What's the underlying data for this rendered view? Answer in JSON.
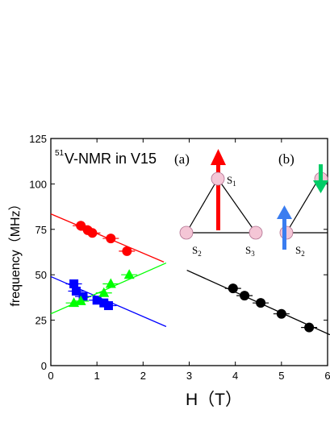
{
  "chart_data": {
    "type": "scatter",
    "title_prefix": "51",
    "title": "V-NMR in V15",
    "panel_a": "(a)",
    "panel_b": "(b)",
    "xlabel": "H（T）",
    "ylabel": "frequency（MHz）",
    "xlim": [
      0,
      6
    ],
    "ylim": [
      0,
      125
    ],
    "xticks": [
      0,
      1,
      2,
      3,
      4,
      5,
      6
    ],
    "yticks": [
      0,
      25,
      50,
      75,
      100,
      125
    ],
    "series": [
      {
        "color": "#ff0000",
        "marker": "circle",
        "points": [
          [
            0.65,
            77
          ],
          [
            0.8,
            74.5
          ],
          [
            0.9,
            73
          ],
          [
            1.3,
            70
          ],
          [
            1.65,
            63
          ]
        ],
        "fit": [
          [
            0,
            83.5
          ],
          [
            2.45,
            57
          ]
        ]
      },
      {
        "color": "#0000ff",
        "marker": "square",
        "points": [
          [
            0.5,
            45
          ],
          [
            0.55,
            41
          ],
          [
            0.7,
            38
          ],
          [
            1.0,
            36
          ],
          [
            1.15,
            34.5
          ],
          [
            1.25,
            33
          ]
        ],
        "fit": [
          [
            0,
            49
          ],
          [
            2.5,
            21.5
          ]
        ]
      },
      {
        "color": "#00ff00",
        "marker": "triangle",
        "points": [
          [
            0.5,
            34.5
          ],
          [
            0.65,
            35.5
          ],
          [
            1.15,
            40
          ],
          [
            1.3,
            45
          ],
          [
            1.7,
            50
          ]
        ],
        "fit": [
          [
            0,
            28.5
          ],
          [
            2.5,
            56.5
          ]
        ]
      },
      {
        "color": "#000000",
        "marker": "circle",
        "points": [
          [
            3.95,
            42.5
          ],
          [
            4.2,
            38.5
          ],
          [
            4.55,
            34.5
          ],
          [
            5.0,
            28.5
          ],
          [
            5.6,
            21
          ]
        ],
        "fit": [
          [
            2.95,
            52.5
          ],
          [
            6.05,
            17
          ]
        ]
      }
    ],
    "inset_a": {
      "spins": [
        "S1",
        "S2",
        "S3"
      ],
      "arrow_color": "#ff0000"
    },
    "inset_b": {
      "spins": [
        "S2"
      ],
      "arrow_colors": [
        "#3a7df0",
        "#00cc66"
      ]
    }
  }
}
